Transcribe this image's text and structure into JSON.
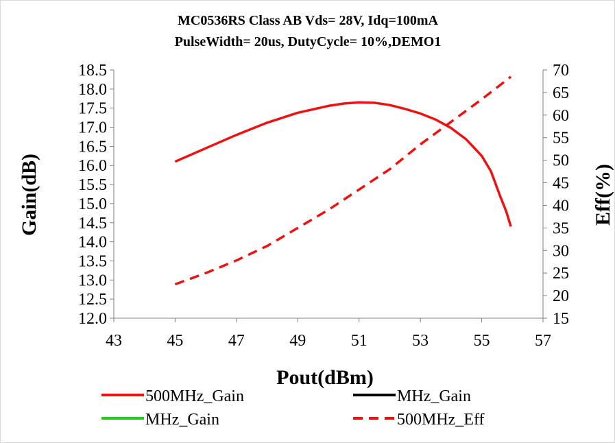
{
  "chart_data": {
    "type": "line",
    "title": "MC0536RS Class AB Vds= 28V, Idq=100mA",
    "subtitle": "PulseWidth= 20us, DutyCycle= 10%,DEMO1",
    "xlabel": "Pout(dBm)",
    "ylabel": "Gain(dB)",
    "y2label": "Eff(%)",
    "xlim": [
      43,
      57
    ],
    "ylim": [
      12.0,
      18.5
    ],
    "y2lim": [
      15,
      70
    ],
    "x_ticks": [
      "43",
      "45",
      "47",
      "49",
      "51",
      "53",
      "55",
      "57"
    ],
    "y_ticks": [
      "12.0",
      "12.5",
      "13.0",
      "13.5",
      "14.0",
      "14.5",
      "15.0",
      "15.5",
      "16.0",
      "16.5",
      "17.0",
      "17.5",
      "18.0",
      "18.5"
    ],
    "y2_ticks": [
      "15",
      "20",
      "25",
      "30",
      "35",
      "40",
      "45",
      "50",
      "55",
      "60",
      "65",
      "70"
    ],
    "grid": false,
    "legend_position": "bottom",
    "series": [
      {
        "name": "500MHz_Gain",
        "axis": "left",
        "color": "#ee1111",
        "dash": "solid",
        "x": [
          45.0,
          46.0,
          47.0,
          48.0,
          49.0,
          50.0,
          50.5,
          51.0,
          51.5,
          52.0,
          52.5,
          53.0,
          53.5,
          54.0,
          54.5,
          55.0,
          55.3,
          55.6,
          55.8,
          55.95
        ],
        "y": [
          16.1,
          16.45,
          16.8,
          17.12,
          17.38,
          17.56,
          17.62,
          17.65,
          17.64,
          17.58,
          17.48,
          17.36,
          17.2,
          16.98,
          16.68,
          16.25,
          15.85,
          15.2,
          14.8,
          14.4
        ]
      },
      {
        "name": "MHz_Gain",
        "axis": "left",
        "color": "#000000",
        "dash": "solid",
        "x": [],
        "y": []
      },
      {
        "name": "MHz_Gain",
        "axis": "left",
        "color": "#22cc22",
        "dash": "solid",
        "x": [],
        "y": []
      },
      {
        "name": "500MHz_Eff",
        "axis": "right",
        "color": "#ee1111",
        "dash": "dashed",
        "x": [
          45.0,
          46.0,
          47.0,
          48.0,
          49.0,
          50.0,
          51.0,
          52.0,
          53.0,
          54.0,
          55.0,
          55.95
        ],
        "y": [
          22.5,
          25.0,
          27.8,
          31.0,
          35.0,
          39.0,
          43.5,
          48.0,
          53.5,
          58.5,
          63.5,
          68.5
        ]
      }
    ]
  }
}
